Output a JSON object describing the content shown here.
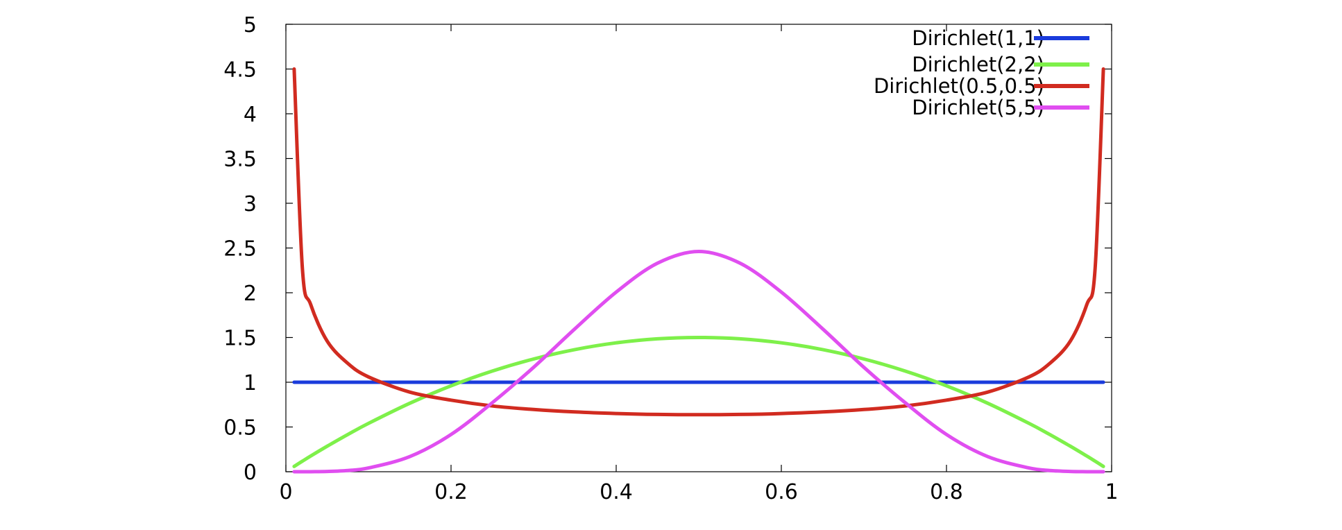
{
  "chart_data": {
    "type": "line",
    "title": "",
    "xlabel": "",
    "ylabel": "",
    "xlim": [
      0,
      1
    ],
    "ylim": [
      0,
      5
    ],
    "x_ticks": [
      {
        "value": 0,
        "label": "0"
      },
      {
        "value": 0.2,
        "label": "0.2"
      },
      {
        "value": 0.4,
        "label": "0.4"
      },
      {
        "value": 0.6,
        "label": "0.6"
      },
      {
        "value": 0.8,
        "label": "0.8"
      },
      {
        "value": 1,
        "label": "1"
      }
    ],
    "y_ticks": [
      {
        "value": 0,
        "label": "0"
      },
      {
        "value": 0.5,
        "label": "0.5"
      },
      {
        "value": 1,
        "label": "1"
      },
      {
        "value": 1.5,
        "label": "1.5"
      },
      {
        "value": 2,
        "label": "2"
      },
      {
        "value": 2.5,
        "label": "2.5"
      },
      {
        "value": 3,
        "label": "3"
      },
      {
        "value": 3.5,
        "label": "3.5"
      },
      {
        "value": 4,
        "label": "4"
      },
      {
        "value": 4.5,
        "label": "4.5"
      },
      {
        "value": 5,
        "label": "5"
      }
    ],
    "grid": false,
    "legend_position": "top-right",
    "x": [
      0.01,
      0.02,
      0.03,
      0.05,
      0.075,
      0.1,
      0.15,
      0.2,
      0.25,
      0.3,
      0.35,
      0.4,
      0.45,
      0.5,
      0.55,
      0.6,
      0.65,
      0.7,
      0.75,
      0.8,
      0.85,
      0.9,
      0.925,
      0.95,
      0.97,
      0.98,
      0.99
    ],
    "series": [
      {
        "name": "Dirichlet(1,1)",
        "color": "#1a3bdc",
        "values": [
          1,
          1,
          1,
          1,
          1,
          1,
          1,
          1,
          1,
          1,
          1,
          1,
          1,
          1,
          1,
          1,
          1,
          1,
          1,
          1,
          1,
          1,
          1,
          1,
          1,
          1,
          1
        ]
      },
      {
        "name": "Dirichlet(2,2)",
        "color": "#7ef04a",
        "values": [
          0.059,
          0.118,
          0.175,
          0.285,
          0.416,
          0.54,
          0.765,
          0.96,
          1.125,
          1.26,
          1.365,
          1.44,
          1.485,
          1.5,
          1.485,
          1.44,
          1.365,
          1.26,
          1.125,
          0.96,
          0.765,
          0.54,
          0.416,
          0.285,
          0.175,
          0.118,
          0.059
        ]
      },
      {
        "name": "Dirichlet(0.5,0.5)",
        "color": "#d12b20",
        "values": [
          4.5,
          2.27,
          1.87,
          1.46,
          1.21,
          1.06,
          0.89,
          0.8,
          0.735,
          0.695,
          0.668,
          0.65,
          0.64,
          0.637,
          0.64,
          0.65,
          0.668,
          0.695,
          0.735,
          0.8,
          0.89,
          1.06,
          1.21,
          1.46,
          1.87,
          2.27,
          4.5
        ]
      },
      {
        "name": "Dirichlet(5,5)",
        "color": "#e04ef0",
        "values": [
          0.0,
          0.0,
          0.0,
          0.003,
          0.014,
          0.042,
          0.169,
          0.416,
          0.771,
          1.167,
          1.597,
          2.007,
          2.33,
          2.461,
          2.33,
          2.007,
          1.597,
          1.167,
          0.771,
          0.416,
          0.169,
          0.042,
          0.014,
          0.003,
          0.0,
          0.0,
          0.0
        ]
      }
    ]
  }
}
